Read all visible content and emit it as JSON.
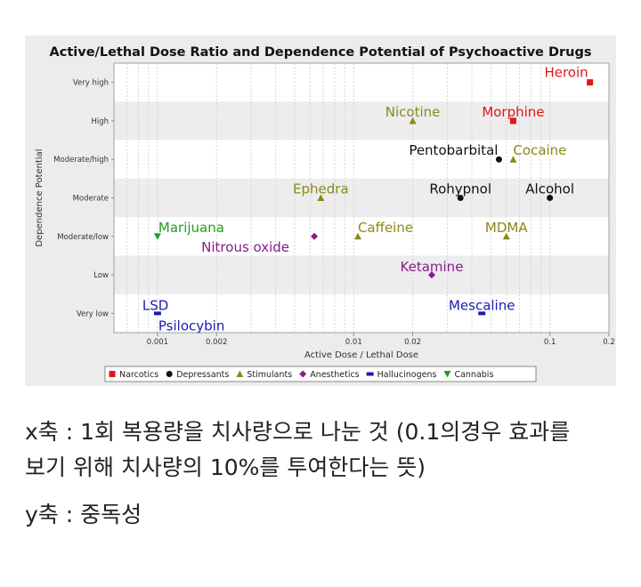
{
  "chart_data": {
    "type": "scatter",
    "title": "Active/Lethal Dose Ratio and Dependence Potential of Psychoactive Drugs",
    "xlabel": "Active Dose / Lethal Dose",
    "ylabel": "Dependence Potential",
    "x_scale": "log",
    "xlim": [
      0.0006,
      0.2
    ],
    "x_ticks": [
      0.001,
      0.002,
      0.01,
      0.02,
      0.1,
      0.2
    ],
    "x_tick_labels": [
      "0.001",
      "0.002",
      "0.01",
      "0.02",
      "0.1",
      "0.2"
    ],
    "y_categories": [
      "Very low",
      "Low",
      "Moderate/low",
      "Moderate",
      "Moderate/high",
      "High",
      "Very high"
    ],
    "grid": true,
    "legend_position": "bottom",
    "series": [
      {
        "name": "Narcotics",
        "color": "#e0161b",
        "marker": "square",
        "points": [
          {
            "label": "Heroin",
            "x": 0.16,
            "y": "Very high"
          },
          {
            "label": "Morphine",
            "x": 0.065,
            "y": "High"
          }
        ]
      },
      {
        "name": "Depressants",
        "color": "#111111",
        "marker": "circle",
        "points": [
          {
            "label": "Pentobarbital",
            "x": 0.055,
            "y": "Moderate/high"
          },
          {
            "label": "Rohypnol",
            "x": 0.035,
            "y": "Moderate"
          },
          {
            "label": "Alcohol",
            "x": 0.1,
            "y": "Moderate"
          }
        ]
      },
      {
        "name": "Stimulants",
        "color": "#8a8a16",
        "marker": "triangle",
        "points": [
          {
            "label": "Nicotine",
            "x": 0.02,
            "y": "High"
          },
          {
            "label": "Cocaine",
            "x": 0.065,
            "y": "Moderate/high"
          },
          {
            "label": "Ephedra",
            "x": 0.0068,
            "y": "Moderate"
          },
          {
            "label": "Caffeine",
            "x": 0.0105,
            "y": "Moderate/low"
          },
          {
            "label": "MDMA",
            "x": 0.06,
            "y": "Moderate/low"
          }
        ]
      },
      {
        "name": "Anesthetics",
        "color": "#8b1a8b",
        "marker": "diamond",
        "points": [
          {
            "label": "Nitrous oxide",
            "x": 0.0063,
            "y": "Moderate/low"
          },
          {
            "label": "Ketamine",
            "x": 0.025,
            "y": "Low"
          }
        ]
      },
      {
        "name": "Hallucinogens",
        "color": "#1b1bb0",
        "marker": "bar",
        "points": [
          {
            "label": "LSD",
            "x": 0.001,
            "y": "Very low"
          },
          {
            "label": "Psilocybin",
            "x": 0.001,
            "y": "Very low"
          },
          {
            "label": "Mescaline",
            "x": 0.045,
            "y": "Very low"
          }
        ]
      },
      {
        "name": "Cannabis",
        "color": "#22a022",
        "marker": "triangle-down",
        "points": [
          {
            "label": "Marijuana",
            "x": 0.001,
            "y": "Moderate/low"
          }
        ]
      }
    ]
  },
  "captions": {
    "line1": "x축 : 1회 복용량을 치사량으로 나눈 것 (0.1의경우 효과를",
    "line2": "보기 위해 치사량의 10%를 투여한다는 뜻)",
    "line3": "y축 : 중독성"
  }
}
